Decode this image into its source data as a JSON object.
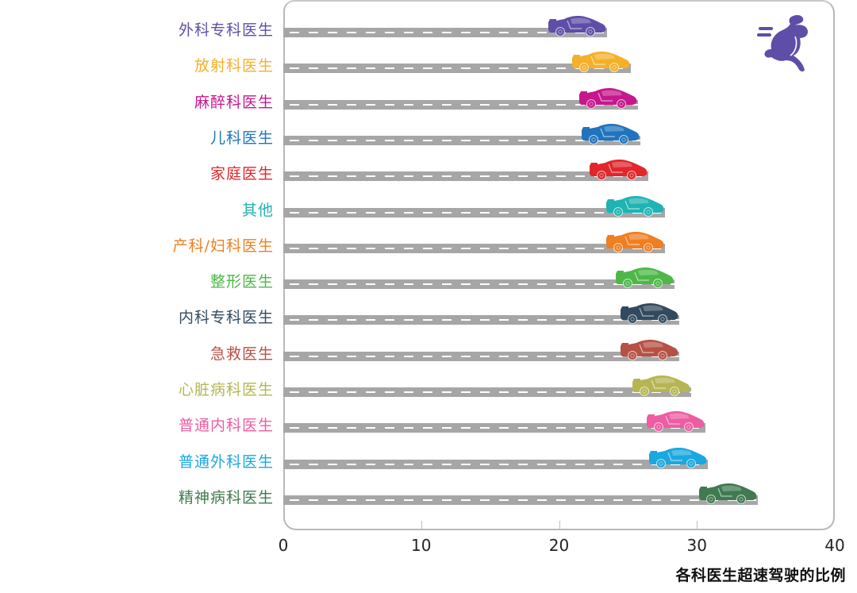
{
  "chart_data": {
    "type": "bar",
    "title": "",
    "xlabel": "各科医生超速驾驶的比例",
    "ylabel": "",
    "xlim": [
      0,
      40
    ],
    "x_ticks": [
      "0",
      "10",
      "20",
      "30",
      "40"
    ],
    "orientation": "horizontal",
    "grid": false,
    "categories": [
      "外科专科医生",
      "放射科医生",
      "麻醉科医生",
      "儿科医生",
      "家庭医生",
      "其他",
      "产科/妇科医生",
      "整形医生",
      "内科专科医生",
      "急救医生",
      "心脏病科医生",
      "普通内科医生",
      "普通外科医生",
      "精神病科医生"
    ],
    "values": [
      23.5,
      25.2,
      25.7,
      25.9,
      26.5,
      27.7,
      27.7,
      28.4,
      28.7,
      28.7,
      29.6,
      30.6,
      30.8,
      34.4
    ],
    "colors": [
      "#5f4ea8",
      "#f5b02a",
      "#c7178c",
      "#1f74bd",
      "#e2262a",
      "#20b3b3",
      "#f07f22",
      "#4db848",
      "#324a5f",
      "#b65145",
      "#b5b652",
      "#ee5ca1",
      "#1aa8e0",
      "#3f7a50"
    ]
  },
  "axis": {
    "ticks": [
      "0",
      "10",
      "20",
      "30",
      "40"
    ],
    "xlabel": "各科医生超速驾驶的比例"
  },
  "decorations": {
    "icon": "running-rabbit-icon",
    "icon_color": "#5f4ea8",
    "bar_style": "road-with-sports-car",
    "road_color": "#a6a6a6"
  }
}
